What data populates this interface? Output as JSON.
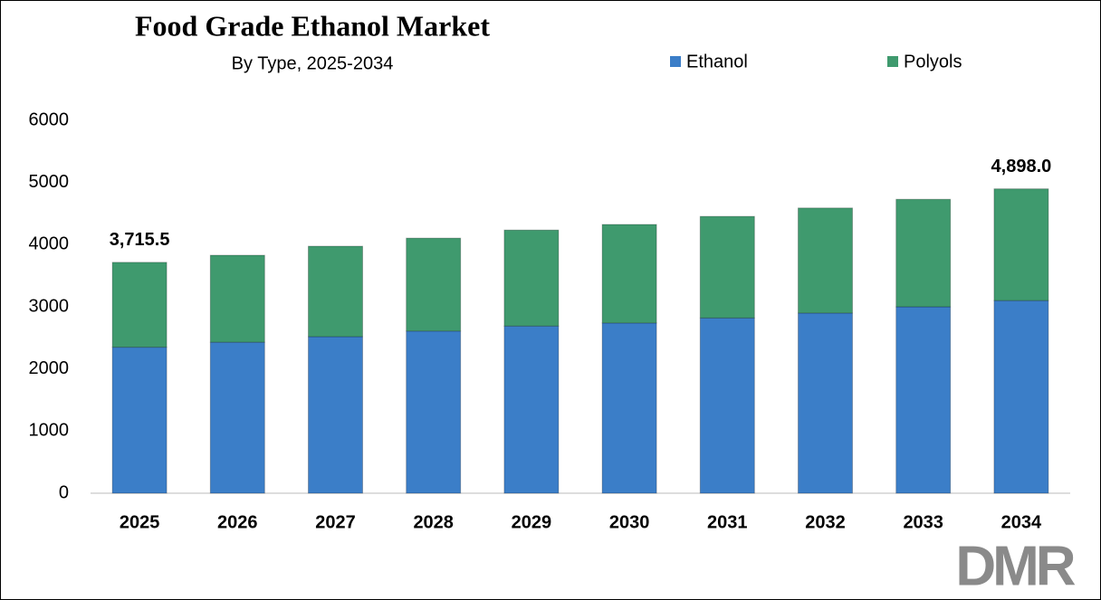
{
  "chart_data": {
    "type": "stacked_bar",
    "title": "Food Grade Ethanol Market",
    "subtitle": "By Type, 2025-2034",
    "categories": [
      "2025",
      "2026",
      "2027",
      "2028",
      "2029",
      "2030",
      "2031",
      "2032",
      "2033",
      "2034"
    ],
    "series": [
      {
        "name": "Ethanol",
        "color": "#3b7ec8",
        "values": [
          2350,
          2430,
          2520,
          2610,
          2690,
          2740,
          2820,
          2900,
          3000,
          3100
        ]
      },
      {
        "name": "Polyols",
        "color": "#3f9a6e",
        "values": [
          1365.5,
          1400,
          1455,
          1495,
          1545,
          1585,
          1635,
          1690,
          1730,
          1798
        ]
      }
    ],
    "annotations": [
      {
        "category": "2025",
        "value": 3715.5,
        "label": "3,715.5"
      },
      {
        "category": "2034",
        "value": 4898.0,
        "label": "4,898.0"
      }
    ],
    "ylim": [
      0,
      6000
    ],
    "yticks": [
      0,
      1000,
      2000,
      3000,
      4000,
      5000,
      6000
    ],
    "grid": false,
    "legend": "top",
    "logo": "DMR"
  }
}
